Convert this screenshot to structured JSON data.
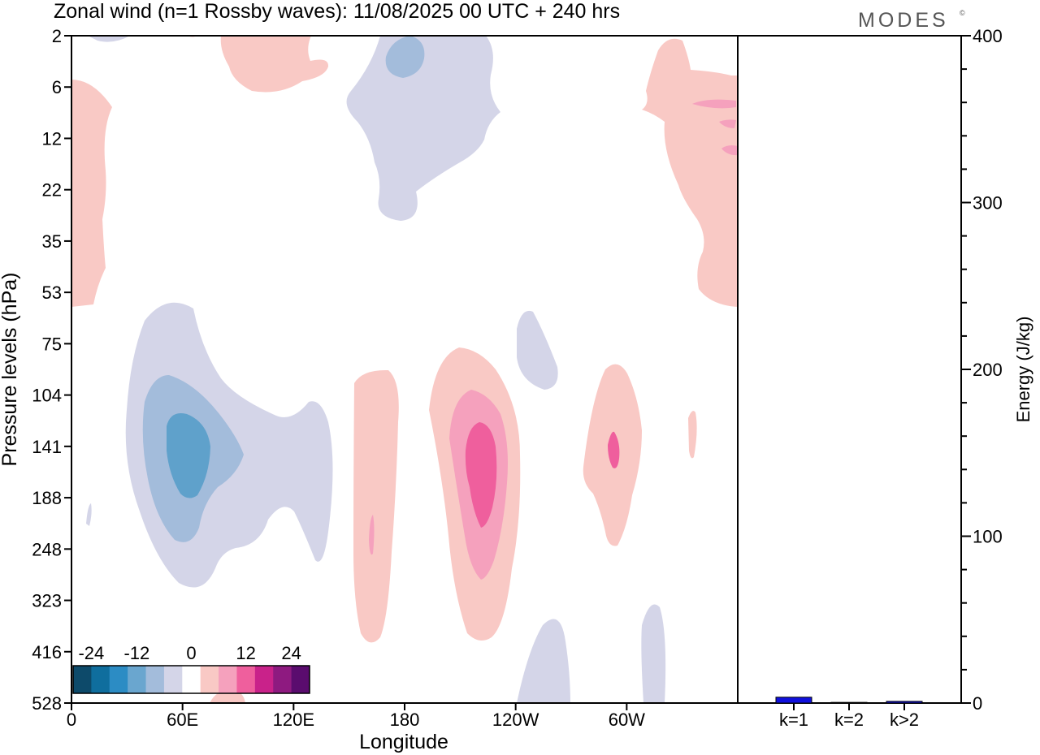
{
  "header": {
    "title": "Zonal wind (n=1 Rossby waves):  11/08/2025  00 UTC  + 240 hrs",
    "logo": "MODES",
    "logo_mark": "©"
  },
  "chart_data": [
    {
      "type": "heatmap",
      "title": "Zonal wind (n=1 Rossby waves)",
      "xlabel": "Longitude",
      "ylabel": "Pressure levels (hPa)",
      "x_tick_labels": [
        "0",
        "60E",
        "120E",
        "180",
        "120W",
        "60W"
      ],
      "x_tick_values_deg_east": [
        0,
        60,
        120,
        180,
        240,
        300
      ],
      "xlim_deg_east": [
        0,
        360
      ],
      "y_tick_labels": [
        "2",
        "6",
        "12",
        "22",
        "35",
        "53",
        "75",
        "104",
        "141",
        "188",
        "248",
        "323",
        "416",
        "528"
      ],
      "y_axis": "pressure levels, top=2 hPa, bottom=528 hPa (evenly spaced levels)",
      "colorbar": {
        "tick_labels": [
          "-24",
          "-12",
          "0",
          "12",
          "24"
        ],
        "colors": [
          "#0d4a6a",
          "#0f6e9e",
          "#2c8cc4",
          "#6aa6cf",
          "#a3bcdb",
          "#d4d5e8",
          "#ffffff",
          "#f9c9c5",
          "#f5a1bd",
          "#ef5f9d",
          "#c9228a",
          "#8e1a80",
          "#5a0c6e"
        ]
      },
      "features": [
        {
          "sign": "negative",
          "max_magnitude_class": "-12",
          "lon_deg": 60,
          "pressure_hPa": 141
        },
        {
          "sign": "negative",
          "max_magnitude_class": "-8",
          "lon_deg": 185,
          "pressure_hPa": 6
        },
        {
          "sign": "positive",
          "max_magnitude_class": "12",
          "lon_deg": 225,
          "pressure_hPa": 141
        },
        {
          "sign": "positive",
          "max_magnitude_class": "8",
          "lon_deg": 293,
          "pressure_hPa": 141
        },
        {
          "sign": "positive",
          "max_magnitude_class": "4",
          "lon_deg": 165,
          "pressure_hPa": 188
        },
        {
          "sign": "positive",
          "max_magnitude_class": "8",
          "lon_deg": 350,
          "pressure_hPa": 6
        }
      ]
    },
    {
      "type": "bar",
      "ylabel": "Energy (J/kg)",
      "categories": [
        "k=1",
        "k=2",
        "k>2"
      ],
      "values": [
        3.5,
        0.4,
        1.0
      ],
      "ylim": [
        0,
        400
      ],
      "y_tick_labels": [
        "0",
        "100",
        "200",
        "300",
        "400"
      ],
      "bar_color": "#1010dd"
    }
  ]
}
